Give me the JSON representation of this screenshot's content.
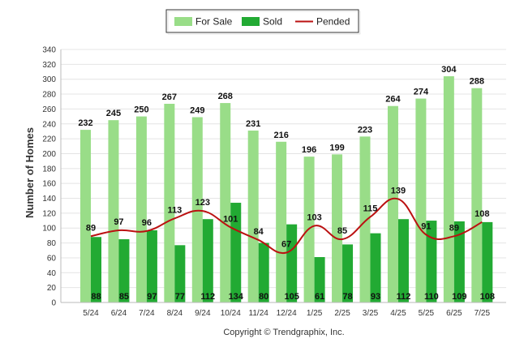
{
  "chart_data": {
    "type": "bar",
    "ylabel": "Number of Homes",
    "ylim": [
      0,
      340
    ],
    "ytick_step": 20,
    "grid": true,
    "legend_position": "top-center",
    "categories": [
      "5/24",
      "6/24",
      "7/24",
      "8/24",
      "9/24",
      "10/24",
      "11/24",
      "12/24",
      "1/25",
      "2/25",
      "3/25",
      "4/25",
      "5/25",
      "6/25",
      "7/25"
    ],
    "series": [
      {
        "name": "For Sale",
        "type": "bar",
        "color": "#99dd88",
        "values": [
          232,
          245,
          250,
          267,
          249,
          268,
          231,
          216,
          196,
          199,
          223,
          264,
          274,
          304,
          288
        ]
      },
      {
        "name": "Sold",
        "type": "bar",
        "color": "#22aa33",
        "values": [
          88,
          85,
          97,
          77,
          112,
          134,
          80,
          105,
          61,
          78,
          93,
          112,
          110,
          109,
          108
        ]
      },
      {
        "name": "Pended",
        "type": "line",
        "color": "#bb1111",
        "values": [
          89,
          97,
          96,
          113,
          123,
          101,
          84,
          67,
          103,
          85,
          115,
          139,
          91,
          89,
          108
        ]
      }
    ]
  },
  "footer": {
    "copyright": "Copyright © Trendgraphix, Inc."
  }
}
